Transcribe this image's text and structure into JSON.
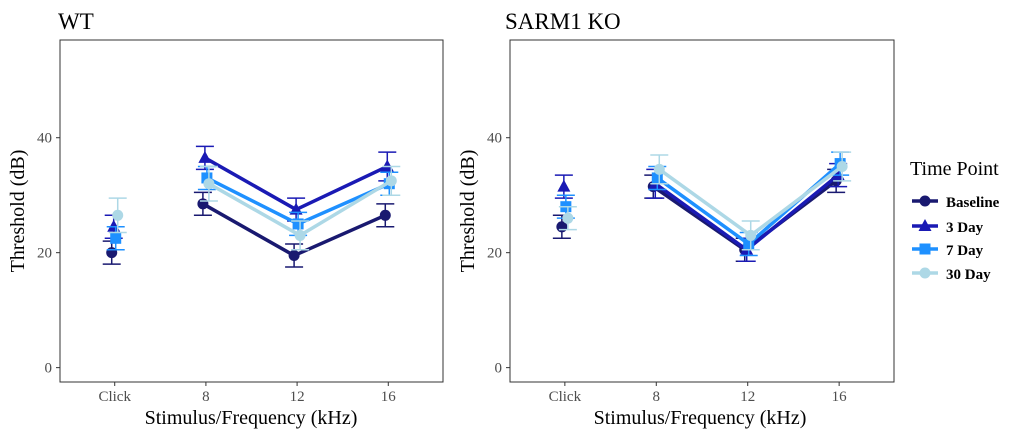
{
  "chart_data": [
    {
      "type": "line",
      "title": "WT",
      "xlabel": "Stimulus/Frequency (kHz)",
      "ylabel": "Threshold (dB)",
      "categories": [
        "Click",
        "8",
        "12",
        "16"
      ],
      "yticks": [
        0,
        20,
        40
      ],
      "ylim": [
        -2.5,
        57
      ],
      "grid": false,
      "connect_from_index": 1,
      "series": [
        {
          "name": "Baseline",
          "values": [
            20,
            28.5,
            19.5,
            26.5
          ],
          "errors": [
            2,
            2,
            2,
            2
          ]
        },
        {
          "name": "3 Day",
          "values": [
            24.5,
            36.5,
            27.5,
            35
          ],
          "errors": [
            2,
            2,
            2,
            2.5
          ]
        },
        {
          "name": "7 Day",
          "values": [
            22.5,
            33,
            25,
            32
          ],
          "errors": [
            2,
            2,
            2,
            2
          ]
        },
        {
          "name": "30 Day",
          "values": [
            26.5,
            32,
            23,
            32.5
          ],
          "errors": [
            3,
            3,
            2.5,
            2.5
          ]
        }
      ]
    },
    {
      "type": "line",
      "title": "SARM1 KO",
      "xlabel": "Stimulus/Frequency (kHz)",
      "ylabel": "Threshold (dB)",
      "categories": [
        "Click",
        "8",
        "12",
        "16"
      ],
      "yticks": [
        0,
        20,
        40
      ],
      "ylim": [
        -2.5,
        57
      ],
      "grid": false,
      "connect_from_index": 1,
      "series": [
        {
          "name": "Baseline",
          "values": [
            24.5,
            31.5,
            20.5,
            32.5
          ],
          "errors": [
            2,
            2,
            2,
            2
          ]
        },
        {
          "name": "3 Day",
          "values": [
            31.5,
            32,
            20.5,
            33.5
          ],
          "errors": [
            2,
            2.5,
            2,
            2
          ]
        },
        {
          "name": "7 Day",
          "values": [
            28,
            33,
            21.5,
            35.5
          ],
          "errors": [
            2,
            2,
            2,
            2
          ]
        },
        {
          "name": "30 Day",
          "values": [
            26,
            34.5,
            23,
            35
          ],
          "errors": [
            2,
            2.5,
            2.5,
            2.5
          ]
        }
      ]
    }
  ],
  "legend": {
    "title": "Time Point",
    "position": "right",
    "items": [
      {
        "label": "Baseline",
        "color": "#191970",
        "shape": "circle"
      },
      {
        "label": "3 Day",
        "color": "#1a1ab4",
        "shape": "triangle"
      },
      {
        "label": "7 Day",
        "color": "#1e90ff",
        "shape": "square"
      },
      {
        "label": "30 Day",
        "color": "#add8e6",
        "shape": "circle"
      }
    ]
  }
}
